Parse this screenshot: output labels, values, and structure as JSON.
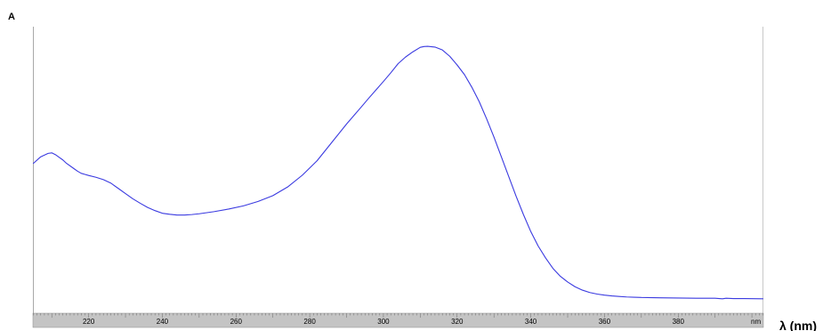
{
  "chart_data": {
    "type": "line",
    "ylabel": "A",
    "xlabel": "λ (nm)",
    "axis_unit": "nm",
    "xlim": [
      205,
      403
    ],
    "x_ticks": [
      220,
      240,
      260,
      280,
      300,
      320,
      340,
      360,
      380
    ],
    "grid": false,
    "line_color": "#3a3ae0",
    "series": [
      {
        "x": [
          205,
          207,
          209,
          210,
          211,
          212,
          213,
          214,
          216,
          217,
          218,
          219,
          220,
          222,
          224,
          226,
          228,
          230,
          232,
          234,
          236,
          238,
          240,
          242,
          244,
          246,
          248,
          250,
          254,
          258,
          262,
          266,
          270,
          274,
          278,
          282,
          286,
          290,
          294,
          296,
          298,
          300,
          302,
          304,
          306,
          308,
          310,
          311,
          312,
          314,
          316,
          318,
          320,
          322,
          324,
          326,
          328,
          330,
          332,
          334,
          336,
          338,
          340,
          342,
          344,
          346,
          348,
          350,
          352,
          354,
          356,
          358,
          360,
          362,
          364,
          366,
          368,
          370,
          375,
          380,
          385,
          390,
          392,
          393,
          395,
          398,
          403
        ],
        "y": [
          0.52,
          0.545,
          0.558,
          0.56,
          0.553,
          0.543,
          0.533,
          0.52,
          0.5,
          0.49,
          0.482,
          0.478,
          0.474,
          0.467,
          0.458,
          0.445,
          0.425,
          0.405,
          0.385,
          0.368,
          0.352,
          0.34,
          0.33,
          0.326,
          0.323,
          0.323,
          0.325,
          0.328,
          0.336,
          0.346,
          0.358,
          0.375,
          0.397,
          0.43,
          0.475,
          0.53,
          0.6,
          0.67,
          0.735,
          0.768,
          0.8,
          0.832,
          0.865,
          0.9,
          0.925,
          0.945,
          0.962,
          0.965,
          0.966,
          0.963,
          0.952,
          0.928,
          0.895,
          0.858,
          0.81,
          0.755,
          0.69,
          0.62,
          0.545,
          0.47,
          0.395,
          0.325,
          0.26,
          0.205,
          0.16,
          0.12,
          0.09,
          0.068,
          0.05,
          0.037,
          0.028,
          0.022,
          0.018,
          0.015,
          0.013,
          0.011,
          0.01,
          0.009,
          0.008,
          0.007,
          0.006,
          0.006,
          0.004,
          0.006,
          0.005,
          0.005,
          0.004
        ]
      }
    ]
  }
}
